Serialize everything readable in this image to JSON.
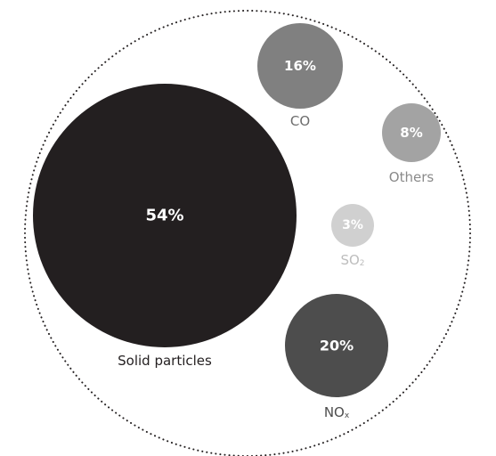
{
  "chart_data": {
    "type": "bubble",
    "title": "",
    "items": [
      {
        "label": "Solid particles",
        "sub": "",
        "value": 54,
        "display": "54%",
        "color": "#231f20",
        "label_color": "#231f20"
      },
      {
        "label": "CO",
        "sub": "",
        "value": 16,
        "display": "16%",
        "color": "#808080",
        "label_color": "#6d6d6d"
      },
      {
        "label": "Others",
        "sub": "",
        "value": 8,
        "display": "8%",
        "color": "#a3a3a3",
        "label_color": "#8a8a8a"
      },
      {
        "label": "SO",
        "sub": "2",
        "value": 3,
        "display": "3%",
        "color": "#d0d0d0",
        "label_color": "#bdbdbd"
      },
      {
        "label": "NO",
        "sub": "x",
        "value": 20,
        "display": "20%",
        "color": "#4d4d4d",
        "label_color": "#4d4d4d"
      }
    ],
    "outline": "dotted circle"
  }
}
